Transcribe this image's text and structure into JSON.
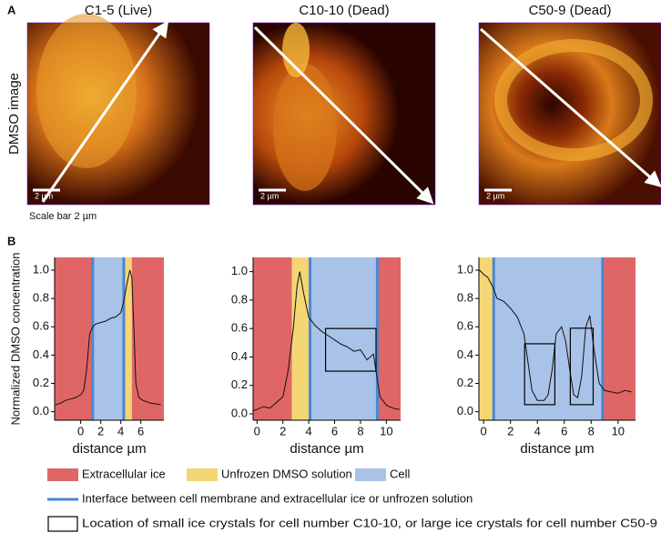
{
  "panel_a": {
    "label": "A",
    "titles": [
      "C1-5 (Live)",
      "C10-10 (Dead)",
      "C50-9 (Dead)"
    ],
    "row_label": "DMSO image",
    "scale_bars": [
      "2 µm",
      "2 µm",
      "2 µm"
    ],
    "scale_note": "Scale bar 2 µm"
  },
  "panel_b": {
    "label": "B"
  },
  "chart_data": [
    {
      "type": "line",
      "xlabel": "distance µm",
      "ylabel": "Normalized DMSO concentration",
      "color": "#111111",
      "x": [
        -2.5,
        -2,
        -1.5,
        -1,
        -0.5,
        0,
        0.3,
        0.6,
        0.9,
        1.2,
        1.5,
        2,
        2.5,
        3,
        3.5,
        4,
        4.3,
        4.6,
        4.9,
        5.1,
        5.3,
        5.5,
        5.8,
        6.2,
        7,
        8
      ],
      "values": [
        0.05,
        0.06,
        0.08,
        0.09,
        0.1,
        0.12,
        0.15,
        0.3,
        0.55,
        0.6,
        0.62,
        0.63,
        0.64,
        0.66,
        0.67,
        0.7,
        0.78,
        0.9,
        1.0,
        0.95,
        0.6,
        0.2,
        0.1,
        0.08,
        0.06,
        0.05
      ],
      "xlim": [
        -2.6,
        8.3
      ],
      "ylim": [
        -0.06,
        1.09
      ],
      "xticks": [
        0,
        2,
        4,
        6
      ],
      "yticks": [
        {
          "value": 0,
          "label": "0.0"
        },
        {
          "value": 0.2,
          "label": "0.2"
        },
        {
          "value": 0.4,
          "label": "0.4"
        },
        {
          "value": 0.6,
          "label": "0.6"
        },
        {
          "value": 0.8,
          "label": "0.8"
        },
        {
          "value": 1,
          "label": "1.0"
        }
      ],
      "regions": [
        {
          "x0": -2.6,
          "x1": 1.2,
          "color": "#e06666"
        },
        {
          "x0": 1.2,
          "x1": 4.3,
          "color": "#a9c2e8"
        },
        {
          "x0": 4.3,
          "x1": 5.1,
          "color": "#f4d675"
        },
        {
          "x0": 5.1,
          "x1": 8.3,
          "color": "#e06666"
        }
      ],
      "interfaces": [
        1.2,
        4.3
      ],
      "boxes": []
    },
    {
      "type": "line",
      "xlabel": "distance µm",
      "color": "#111111",
      "x": [
        -0.3,
        0.5,
        1,
        1.5,
        2,
        2.4,
        2.8,
        3.1,
        3.3,
        3.6,
        4,
        4.5,
        5,
        5.5,
        6,
        6.5,
        7,
        7.5,
        8,
        8.5,
        9,
        9.2,
        9.5,
        10,
        10.5,
        11
      ],
      "values": [
        0.02,
        0.05,
        0.04,
        0.08,
        0.12,
        0.3,
        0.6,
        0.9,
        1.0,
        0.85,
        0.68,
        0.62,
        0.58,
        0.55,
        0.52,
        0.49,
        0.47,
        0.44,
        0.45,
        0.38,
        0.42,
        0.3,
        0.12,
        0.06,
        0.04,
        0.03
      ],
      "xlim": [
        -0.3,
        11.1
      ],
      "ylim": [
        -0.045,
        1.1
      ],
      "xticks": [
        0,
        2,
        4,
        6,
        8,
        10
      ],
      "yticks": [
        {
          "value": 0,
          "label": "0.0"
        },
        {
          "value": 0.2,
          "label": "0.2"
        },
        {
          "value": 0.4,
          "label": "0.4"
        },
        {
          "value": 0.6,
          "label": "0.6"
        },
        {
          "value": 0.8,
          "label": "0.8"
        },
        {
          "value": 1,
          "label": "1.0"
        }
      ],
      "regions": [
        {
          "x0": -0.3,
          "x1": 2.7,
          "color": "#e06666"
        },
        {
          "x0": 2.7,
          "x1": 4.1,
          "color": "#f4d675"
        },
        {
          "x0": 4.1,
          "x1": 9.3,
          "color": "#a9c2e8"
        },
        {
          "x0": 9.3,
          "x1": 11.1,
          "color": "#e06666"
        }
      ],
      "interfaces": [
        4.1,
        9.3
      ],
      "boxes": [
        {
          "x0": 5.3,
          "x1": 9.2,
          "y0": 0.3,
          "y1": 0.6
        }
      ]
    },
    {
      "type": "line",
      "xlabel": "distance µm",
      "color": "#111111",
      "x": [
        -0.3,
        0,
        0.3,
        0.7,
        1,
        1.5,
        2,
        2.5,
        3,
        3.3,
        3.6,
        4,
        4.5,
        4.8,
        5.1,
        5.4,
        5.8,
        6.1,
        6.4,
        6.7,
        7,
        7.3,
        7.6,
        7.9,
        8.2,
        8.6,
        9,
        9.5,
        10,
        10.5,
        11
      ],
      "values": [
        1.0,
        0.97,
        0.95,
        0.88,
        0.8,
        0.78,
        0.73,
        0.67,
        0.55,
        0.35,
        0.15,
        0.08,
        0.08,
        0.12,
        0.3,
        0.55,
        0.6,
        0.5,
        0.3,
        0.12,
        0.1,
        0.25,
        0.6,
        0.68,
        0.45,
        0.2,
        0.15,
        0.14,
        0.13,
        0.15,
        0.14
      ],
      "xlim": [
        -0.35,
        11.3
      ],
      "ylim": [
        -0.06,
        1.09
      ],
      "xticks": [
        0,
        2,
        4,
        6,
        8,
        10
      ],
      "yticks": [
        {
          "value": 0,
          "label": "0.0"
        },
        {
          "value": 0.2,
          "label": "0.2"
        },
        {
          "value": 0.4,
          "label": "0.4"
        },
        {
          "value": 0.6,
          "label": "0.6"
        },
        {
          "value": 0.8,
          "label": "0.8"
        },
        {
          "value": 1,
          "label": "1.0"
        }
      ],
      "regions": [
        {
          "x0": -0.35,
          "x1": 0.75,
          "color": "#f4d675"
        },
        {
          "x0": 0.75,
          "x1": 8.85,
          "color": "#a9c2e8"
        },
        {
          "x0": 8.85,
          "x1": 11.3,
          "color": "#e06666"
        }
      ],
      "interfaces": [
        0.75,
        8.85
      ],
      "boxes": [
        {
          "x0": 3.05,
          "x1": 5.3,
          "y0": 0.05,
          "y1": 0.48
        },
        {
          "x0": 6.45,
          "x1": 8.15,
          "y0": 0.05,
          "y1": 0.59
        }
      ]
    }
  ],
  "legend": {
    "swatches": [
      {
        "label": "Extracellular ice",
        "color": "#e06666"
      },
      {
        "label": "Unfrozen DMSO solution",
        "color": "#f4d675"
      },
      {
        "label": "Cell",
        "color": "#a9c2e8"
      }
    ],
    "interface": {
      "label": "Interface between cell membrane and extracellular ice or unfrozen solution",
      "color": "#4a86d4"
    },
    "box": {
      "label": "Location of small ice crystals for cell number C10-10, or large ice crystals for cell number C50-9"
    }
  }
}
